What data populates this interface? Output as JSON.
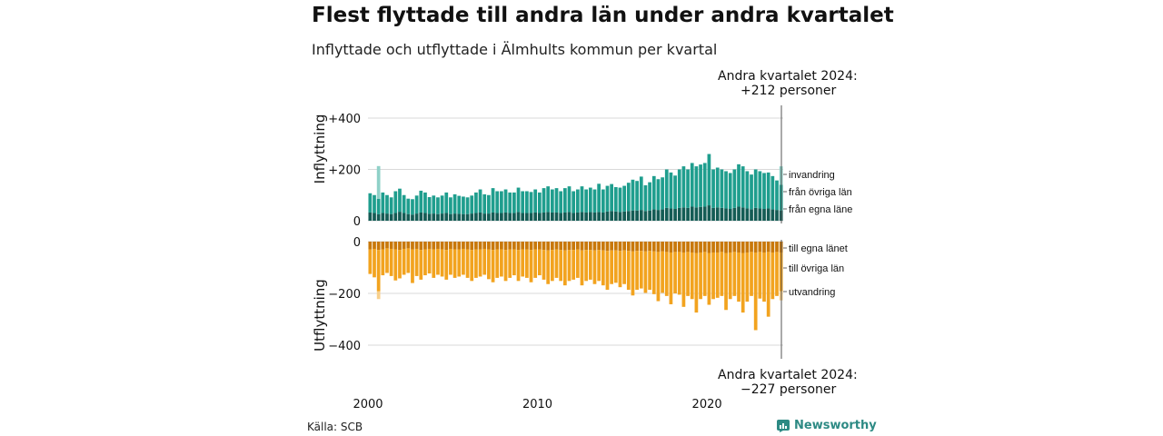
{
  "title": "Flest flyttade till andra län under andra kvartalet",
  "subtitle": "Inflyttade och utflyttade i Älmhults kommun per kvartal",
  "source": "Källa: SCB",
  "brand": "Newsworthy",
  "colors": {
    "invandring": "#8fd1c8",
    "fran_ovriga_lan": "#1f9e8e",
    "fran_egna_lanet": "#145c55",
    "till_egna_lanet": "#c8780a",
    "till_ovriga_lan": "#f2a31f",
    "utvandring": "#f8d08c",
    "brand": "#2d8a84"
  },
  "annotations": {
    "top_line1": "Andra kvartalet 2024:",
    "top_line2": "+212 personer",
    "bottom_line1": "Andra kvartalet 2024:",
    "bottom_line2": "−227 personer"
  },
  "chart_data": {
    "type": "bar",
    "stacked": true,
    "x": {
      "start": "2000 Q1",
      "end": "2024 Q2",
      "quarters": 98,
      "tick_labels": [
        "2000",
        "2010",
        "2020"
      ]
    },
    "panels": [
      {
        "ylabel": "Inflyttning",
        "ylim": [
          0,
          450
        ],
        "tick_labels": [
          "0",
          "+200",
          "+400"
        ],
        "tick_values": [
          0,
          200,
          400
        ],
        "series": [
          {
            "name": "från egna läne",
            "values": [
              32,
              30,
              25,
              30,
              28,
              26,
              30,
              35,
              30,
              26,
              24,
              28,
              32,
              30,
              27,
              28,
              26,
              28,
              30,
              26,
              28,
              27,
              26,
              26,
              28,
              30,
              32,
              28,
              28,
              32,
              30,
              30,
              32,
              30,
              30,
              34,
              30,
              30,
              30,
              32,
              30,
              32,
              34,
              32,
              32,
              30,
              32,
              34,
              30,
              32,
              34,
              32,
              34,
              32,
              34,
              32,
              36,
              38,
              36,
              34,
              36,
              38,
              40,
              40,
              42,
              38,
              40,
              44,
              42,
              44,
              50,
              48,
              46,
              50,
              52,
              50,
              55,
              52,
              54,
              55,
              60,
              50,
              52,
              50,
              48,
              46,
              50,
              55,
              52,
              48,
              45,
              50,
              48,
              46,
              48,
              44,
              42,
              40
            ]
          },
          {
            "name": "från övriga län",
            "values": [
              75,
              70,
              60,
              80,
              72,
              65,
              85,
              90,
              70,
              60,
              60,
              70,
              85,
              80,
              65,
              70,
              65,
              70,
              80,
              65,
              75,
              70,
              68,
              65,
              70,
              80,
              90,
              75,
              72,
              95,
              85,
              85,
              90,
              80,
              80,
              95,
              85,
              85,
              82,
              90,
              80,
              95,
              100,
              90,
              95,
              85,
              95,
              100,
              85,
              90,
              100,
              90,
              95,
              90,
              110,
              90,
              100,
              105,
              95,
              95,
              100,
              110,
              120,
              115,
              130,
              100,
              110,
              130,
              120,
              125,
              150,
              140,
              130,
              150,
              160,
              150,
              170,
              160,
              165,
              170,
              200,
              150,
              155,
              150,
              145,
              140,
              150,
              165,
              160,
              145,
              135,
              150,
              145,
              140,
              140,
              130,
              115,
              100
            ]
          },
          {
            "name": "invandring",
            "values": [
              0,
              0,
              128,
              0,
              0,
              0,
              0,
              0,
              0,
              0,
              0,
              0,
              0,
              0,
              0,
              0,
              0,
              0,
              0,
              0,
              0,
              0,
              0,
              0,
              0,
              0,
              0,
              0,
              0,
              0,
              0,
              0,
              0,
              0,
              0,
              0,
              0,
              0,
              0,
              0,
              0,
              0,
              0,
              0,
              0,
              0,
              0,
              0,
              0,
              0,
              0,
              0,
              0,
              0,
              0,
              0,
              0,
              0,
              0,
              0,
              0,
              0,
              0,
              0,
              0,
              0,
              0,
              0,
              0,
              0,
              0,
              0,
              0,
              0,
              0,
              0,
              0,
              0,
              0,
              0,
              0,
              0,
              0,
              0,
              0,
              0,
              0,
              0,
              0,
              0,
              0,
              0,
              0,
              0,
              0,
              0,
              0,
              72
            ]
          }
        ]
      },
      {
        "ylabel": "Utflyttning",
        "ylim": [
          -450,
          0
        ],
        "tick_labels": [
          "0",
          "−200",
          "−400"
        ],
        "tick_values": [
          0,
          -200,
          -400
        ],
        "series": [
          {
            "name": "till egna länet",
            "values": [
              -30,
              -28,
              -32,
              -30,
              -26,
              -28,
              -30,
              -32,
              -28,
              -26,
              -30,
              -28,
              -32,
              -30,
              -28,
              -30,
              -28,
              -30,
              -32,
              -28,
              -30,
              -30,
              -28,
              -30,
              -32,
              -30,
              -30,
              -28,
              -30,
              -32,
              -30,
              -30,
              -32,
              -30,
              -30,
              -32,
              -30,
              -30,
              -32,
              -30,
              -30,
              -32,
              -34,
              -32,
              -30,
              -32,
              -34,
              -32,
              -32,
              -30,
              -34,
              -32,
              -32,
              -34,
              -32,
              -34,
              -36,
              -34,
              -34,
              -36,
              -34,
              -36,
              -38,
              -36,
              -36,
              -38,
              -36,
              -38,
              -40,
              -38,
              -40,
              -42,
              -40,
              -40,
              -42,
              -40,
              -42,
              -44,
              -42,
              -40,
              -44,
              -42,
              -42,
              -40,
              -44,
              -42,
              -40,
              -42,
              -44,
              -42,
              -40,
              -42,
              -40,
              -42,
              -40,
              -42,
              -40,
              -42
            ]
          },
          {
            "name": "till övriga län",
            "values": [
              -95,
              -110,
              -160,
              -100,
              -95,
              -105,
              -120,
              -110,
              -100,
              -95,
              -130,
              -105,
              -115,
              -100,
              -95,
              -110,
              -100,
              -105,
              -115,
              -100,
              -110,
              -105,
              -100,
              -110,
              -120,
              -110,
              -105,
              -100,
              -115,
              -125,
              -110,
              -105,
              -120,
              -110,
              -100,
              -120,
              -105,
              -110,
              -125,
              -110,
              -100,
              -115,
              -130,
              -120,
              -110,
              -120,
              -135,
              -120,
              -115,
              -110,
              -135,
              -120,
              -115,
              -130,
              -120,
              -135,
              -150,
              -130,
              -125,
              -140,
              -130,
              -150,
              -170,
              -150,
              -145,
              -160,
              -150,
              -165,
              -190,
              -160,
              -170,
              -200,
              -160,
              -165,
              -210,
              -170,
              -180,
              -230,
              -180,
              -170,
              -200,
              -180,
              -175,
              -170,
              -220,
              -180,
              -170,
              -190,
              -230,
              -190,
              -170,
              -300,
              -180,
              -190,
              -250,
              -180,
              -170,
              -150
            ]
          },
          {
            "name": "utvandring",
            "values": [
              0,
              0,
              -30,
              0,
              0,
              0,
              0,
              0,
              0,
              0,
              0,
              0,
              0,
              0,
              0,
              0,
              0,
              0,
              0,
              0,
              0,
              0,
              0,
              0,
              0,
              0,
              0,
              0,
              0,
              0,
              0,
              0,
              0,
              0,
              0,
              0,
              0,
              0,
              0,
              0,
              0,
              0,
              0,
              0,
              0,
              0,
              0,
              0,
              0,
              0,
              0,
              0,
              0,
              0,
              0,
              0,
              0,
              0,
              0,
              0,
              0,
              0,
              0,
              0,
              0,
              0,
              0,
              0,
              0,
              0,
              0,
              0,
              0,
              0,
              0,
              0,
              0,
              0,
              0,
              0,
              0,
              0,
              0,
              0,
              0,
              0,
              0,
              0,
              0,
              0,
              0,
              0,
              0,
              0,
              0,
              0,
              0,
              -35
            ]
          }
        ]
      }
    ],
    "legend": {
      "placement": "right",
      "inflow": [
        "invandring",
        "från övriga län",
        "från egna läne"
      ],
      "outflow": [
        "till egna länet",
        "till övriga län",
        "utvandring"
      ]
    }
  }
}
